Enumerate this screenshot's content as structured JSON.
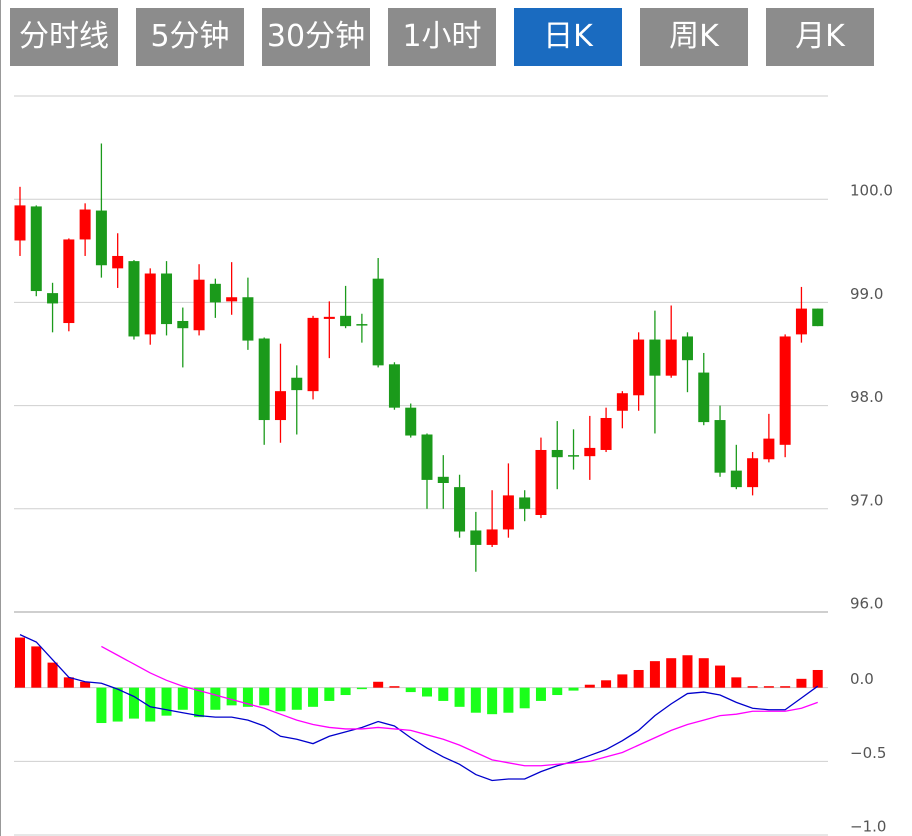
{
  "tabs": [
    {
      "label": "分时线",
      "selected": false
    },
    {
      "label": "5分钟",
      "selected": false
    },
    {
      "label": "30分钟",
      "selected": false
    },
    {
      "label": "1小时",
      "selected": false
    },
    {
      "label": "日K",
      "selected": true
    },
    {
      "label": "周K",
      "selected": false
    },
    {
      "label": "月K",
      "selected": false
    }
  ],
  "chart_data": [
    {
      "type": "candlestick",
      "up_color": "#ff0000",
      "down_color": "#1b9a1b",
      "grid": true,
      "ylim": [
        96,
        101
      ],
      "yticks": [
        {
          "value": 96,
          "label": "96.0"
        },
        {
          "value": 97,
          "label": "97.0"
        },
        {
          "value": 98,
          "label": "98.0"
        },
        {
          "value": 99,
          "label": "99.0"
        },
        {
          "value": 100,
          "label": "100.0"
        }
      ],
      "open": [
        99.6,
        99.93,
        99.09,
        98.8,
        99.61,
        99.89,
        99.33,
        99.4,
        98.69,
        99.28,
        98.82,
        98.73,
        99.18,
        99.01,
        99.05,
        98.65,
        97.86,
        98.27,
        98.14,
        98.84,
        98.87,
        98.79,
        99.23,
        98.4,
        97.98,
        97.72,
        97.31,
        97.21,
        96.79,
        96.65,
        96.8,
        97.11,
        96.94,
        97.57,
        97.52,
        97.51,
        97.57,
        97.95,
        98.1,
        98.64,
        98.29,
        98.67,
        98.32,
        97.86,
        97.37,
        97.21,
        97.48,
        97.62,
        98.69,
        98.94
      ],
      "high": [
        100.12,
        99.94,
        99.19,
        99.62,
        99.96,
        100.54,
        99.67,
        99.41,
        99.33,
        99.4,
        98.95,
        99.37,
        99.23,
        99.39,
        99.24,
        98.66,
        98.6,
        98.39,
        98.87,
        99.01,
        99.16,
        98.89,
        99.43,
        98.42,
        98.02,
        97.73,
        97.52,
        97.33,
        96.97,
        97.18,
        97.44,
        97.18,
        97.69,
        97.85,
        97.77,
        97.9,
        97.98,
        98.14,
        98.71,
        98.92,
        98.97,
        98.71,
        98.51,
        98.0,
        97.62,
        97.55,
        97.92,
        98.69,
        99.15,
        98.94
      ],
      "low": [
        99.45,
        99.06,
        98.71,
        98.72,
        99.45,
        99.24,
        99.14,
        98.64,
        98.59,
        98.68,
        98.37,
        98.68,
        98.85,
        98.88,
        98.54,
        97.62,
        97.64,
        97.72,
        98.06,
        98.46,
        98.75,
        98.61,
        98.37,
        97.96,
        97.69,
        97.0,
        97.0,
        96.72,
        96.39,
        96.63,
        96.72,
        96.88,
        96.91,
        97.19,
        97.38,
        97.28,
        97.55,
        97.78,
        97.95,
        97.73,
        98.27,
        98.13,
        97.81,
        97.31,
        97.19,
        97.13,
        97.45,
        97.5,
        98.61,
        98.77
      ],
      "close": [
        99.94,
        99.11,
        98.99,
        99.61,
        99.9,
        99.36,
        99.45,
        98.67,
        99.28,
        98.79,
        98.75,
        99.22,
        99.0,
        99.05,
        98.63,
        97.86,
        98.14,
        98.15,
        98.85,
        98.86,
        98.77,
        98.78,
        98.39,
        97.98,
        97.71,
        97.28,
        97.25,
        96.78,
        96.65,
        96.8,
        97.13,
        97.0,
        97.57,
        97.5,
        97.51,
        97.59,
        97.88,
        98.12,
        98.64,
        98.29,
        98.64,
        98.44,
        97.84,
        97.35,
        97.21,
        97.49,
        97.68,
        98.67,
        98.94,
        98.77
      ]
    },
    {
      "type": "macd",
      "grid": true,
      "ylim": [
        -1.0,
        0.5
      ],
      "yticks": [
        {
          "value": 0,
          "label": "0.0"
        },
        {
          "value": -0.5,
          "label": "−0.5"
        },
        {
          "value": -1.0,
          "label": "−1.0"
        }
      ],
      "histogram": {
        "up_color": "#ff0000",
        "down_color": "#1aff1a",
        "values": [
          0.34,
          0.28,
          0.17,
          0.07,
          0.04,
          -0.24,
          -0.23,
          -0.21,
          -0.23,
          -0.19,
          -0.15,
          -0.2,
          -0.15,
          -0.12,
          -0.13,
          -0.12,
          -0.16,
          -0.15,
          -0.13,
          -0.09,
          -0.05,
          -0.01,
          0.04,
          0.01,
          -0.03,
          -0.06,
          -0.09,
          -0.13,
          -0.17,
          -0.18,
          -0.17,
          -0.14,
          -0.09,
          -0.05,
          -0.02,
          0.02,
          0.05,
          0.09,
          0.12,
          0.18,
          0.2,
          0.22,
          0.2,
          0.15,
          0.07,
          0.01,
          0.01,
          0.01,
          0.06,
          0.12
        ]
      },
      "lines": [
        {
          "color": "#0000cc",
          "values": [
            0.36,
            0.31,
            0.19,
            0.07,
            0.04,
            0.03,
            -0.01,
            -0.06,
            -0.13,
            -0.15,
            -0.17,
            -0.19,
            -0.2,
            -0.2,
            -0.22,
            -0.26,
            -0.33,
            -0.35,
            -0.38,
            -0.33,
            -0.3,
            -0.27,
            -0.23,
            -0.26,
            -0.34,
            -0.41,
            -0.47,
            -0.52,
            -0.59,
            -0.63,
            -0.62,
            -0.62,
            -0.57,
            -0.53,
            -0.5,
            -0.46,
            -0.42,
            -0.36,
            -0.29,
            -0.19,
            -0.11,
            -0.04,
            -0.03,
            -0.05,
            -0.1,
            -0.14,
            -0.15,
            -0.15,
            -0.07,
            0.01
          ]
        },
        {
          "color": "#ff00ff",
          "values": [
            null,
            null,
            null,
            null,
            null,
            0.28,
            0.22,
            0.16,
            0.1,
            0.05,
            0.01,
            -0.02,
            -0.05,
            -0.08,
            -0.11,
            -0.14,
            -0.18,
            -0.22,
            -0.25,
            -0.27,
            -0.28,
            -0.28,
            -0.27,
            -0.28,
            -0.29,
            -0.32,
            -0.35,
            -0.39,
            -0.44,
            -0.49,
            -0.51,
            -0.53,
            -0.53,
            -0.52,
            -0.51,
            -0.5,
            -0.47,
            -0.44,
            -0.39,
            -0.34,
            -0.29,
            -0.25,
            -0.22,
            -0.19,
            -0.18,
            -0.16,
            -0.16,
            -0.16,
            -0.14,
            -0.1
          ]
        }
      ]
    }
  ]
}
